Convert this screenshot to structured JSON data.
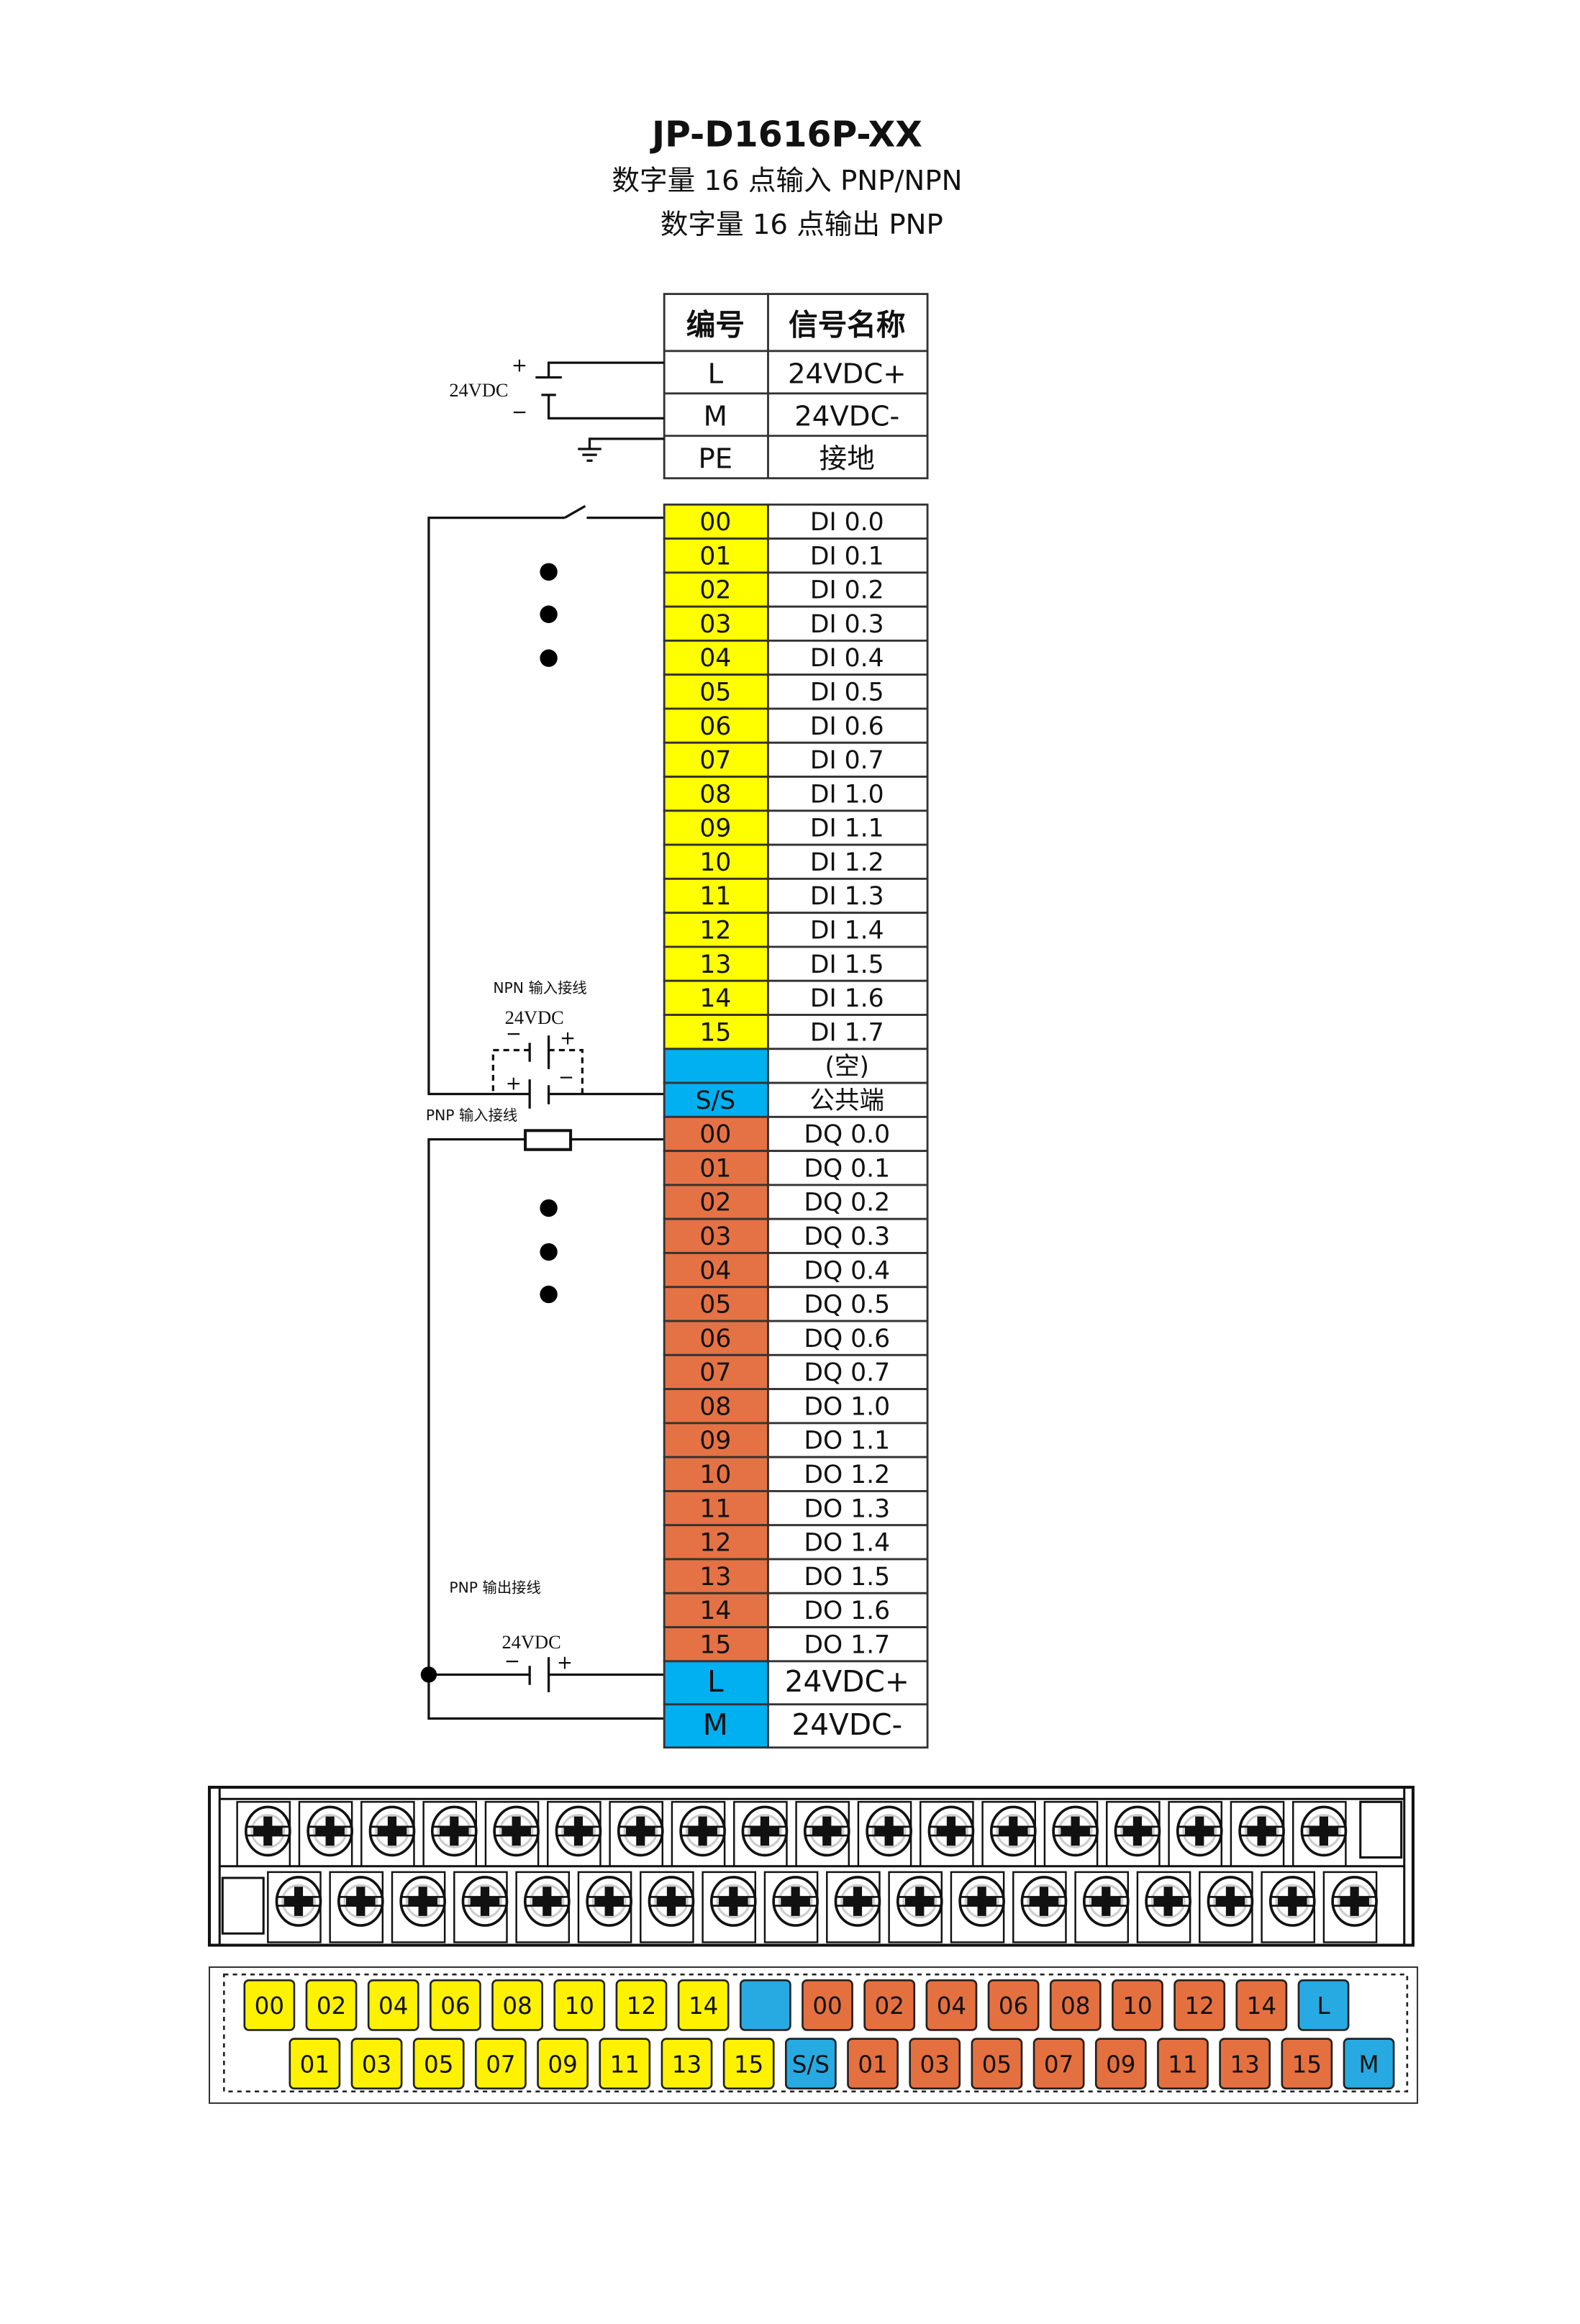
{
  "title": "JP-D1616P-XX",
  "subtitle_lines": [
    "数字量 16 点输入  PNP/NPN",
    "数字量 16 点输出  PNP"
  ],
  "colors": {
    "input": "#ffff00",
    "common": "#00b0f0",
    "output": "#e57245",
    "label_input": "#fff200",
    "label_common": "#27aae1",
    "label_output": "#e5703f"
  },
  "power_table": {
    "headers": [
      "编号",
      "信号名称"
    ],
    "rows": [
      {
        "id": "L",
        "name": "24VDC+"
      },
      {
        "id": "M",
        "name": "24VDC-"
      },
      {
        "id": "PE",
        "name": "接地"
      }
    ]
  },
  "io_table": {
    "rows": [
      {
        "id": "00",
        "name": "DI 0.0",
        "group": "input"
      },
      {
        "id": "01",
        "name": "DI 0.1",
        "group": "input"
      },
      {
        "id": "02",
        "name": "DI 0.2",
        "group": "input"
      },
      {
        "id": "03",
        "name": "DI 0.3",
        "group": "input"
      },
      {
        "id": "04",
        "name": "DI 0.4",
        "group": "input"
      },
      {
        "id": "05",
        "name": "DI 0.5",
        "group": "input"
      },
      {
        "id": "06",
        "name": "DI 0.6",
        "group": "input"
      },
      {
        "id": "07",
        "name": "DI 0.7",
        "group": "input"
      },
      {
        "id": "08",
        "name": "DI 1.0",
        "group": "input"
      },
      {
        "id": "09",
        "name": "DI 1.1",
        "group": "input"
      },
      {
        "id": "10",
        "name": "DI 1.2",
        "group": "input"
      },
      {
        "id": "11",
        "name": "DI 1.3",
        "group": "input"
      },
      {
        "id": "12",
        "name": "DI 1.4",
        "group": "input"
      },
      {
        "id": "13",
        "name": "DI 1.5",
        "group": "input"
      },
      {
        "id": "14",
        "name": "DI 1.6",
        "group": "input"
      },
      {
        "id": "15",
        "name": "DI 1.7",
        "group": "input"
      },
      {
        "id": "",
        "name": "(空)",
        "group": "common"
      },
      {
        "id": "S/S",
        "name": "公共端",
        "group": "common"
      },
      {
        "id": "00",
        "name": "DQ 0.0",
        "group": "output"
      },
      {
        "id": "01",
        "name": "DQ 0.1",
        "group": "output"
      },
      {
        "id": "02",
        "name": "DQ 0.2",
        "group": "output"
      },
      {
        "id": "03",
        "name": "DQ 0.3",
        "group": "output"
      },
      {
        "id": "04",
        "name": "DQ 0.4",
        "group": "output"
      },
      {
        "id": "05",
        "name": "DQ 0.5",
        "group": "output"
      },
      {
        "id": "06",
        "name": "DQ 0.6",
        "group": "output"
      },
      {
        "id": "07",
        "name": "DQ 0.7",
        "group": "output"
      },
      {
        "id": "08",
        "name": "DO 1.0",
        "group": "output"
      },
      {
        "id": "09",
        "name": "DO 1.1",
        "group": "output"
      },
      {
        "id": "10",
        "name": "DO 1.2",
        "group": "output"
      },
      {
        "id": "11",
        "name": "DO 1.3",
        "group": "output"
      },
      {
        "id": "12",
        "name": "DO 1.4",
        "group": "output"
      },
      {
        "id": "13",
        "name": "DO 1.5",
        "group": "output"
      },
      {
        "id": "14",
        "name": "DO 1.6",
        "group": "output"
      },
      {
        "id": "15",
        "name": "DO 1.7",
        "group": "output"
      },
      {
        "id": "L",
        "name": "24VDC+",
        "group": "common",
        "tall": true
      },
      {
        "id": "M",
        "name": "24VDC-",
        "group": "common",
        "tall": true
      }
    ]
  },
  "wiring": {
    "supply_label": "24VDC",
    "plus": "+",
    "minus": "−",
    "npn_input": "NPN 输入接线",
    "pnp_input": "PNP 输入接线",
    "pnp_output": "PNP 输出接线"
  },
  "terminal_labels": {
    "top": [
      {
        "id": "00",
        "group": "input"
      },
      {
        "id": "02",
        "group": "input"
      },
      {
        "id": "04",
        "group": "input"
      },
      {
        "id": "06",
        "group": "input"
      },
      {
        "id": "08",
        "group": "input"
      },
      {
        "id": "10",
        "group": "input"
      },
      {
        "id": "12",
        "group": "input"
      },
      {
        "id": "14",
        "group": "input"
      },
      {
        "id": "",
        "group": "common"
      },
      {
        "id": "00",
        "group": "output"
      },
      {
        "id": "02",
        "group": "output"
      },
      {
        "id": "04",
        "group": "output"
      },
      {
        "id": "06",
        "group": "output"
      },
      {
        "id": "08",
        "group": "output"
      },
      {
        "id": "10",
        "group": "output"
      },
      {
        "id": "12",
        "group": "output"
      },
      {
        "id": "14",
        "group": "output"
      },
      {
        "id": "L",
        "group": "common"
      }
    ],
    "bottom": [
      {
        "id": "01",
        "group": "input"
      },
      {
        "id": "03",
        "group": "input"
      },
      {
        "id": "05",
        "group": "input"
      },
      {
        "id": "07",
        "group": "input"
      },
      {
        "id": "09",
        "group": "input"
      },
      {
        "id": "11",
        "group": "input"
      },
      {
        "id": "13",
        "group": "input"
      },
      {
        "id": "15",
        "group": "input"
      },
      {
        "id": "S/S",
        "group": "common"
      },
      {
        "id": "01",
        "group": "output"
      },
      {
        "id": "03",
        "group": "output"
      },
      {
        "id": "05",
        "group": "output"
      },
      {
        "id": "07",
        "group": "output"
      },
      {
        "id": "09",
        "group": "output"
      },
      {
        "id": "11",
        "group": "output"
      },
      {
        "id": "13",
        "group": "output"
      },
      {
        "id": "15",
        "group": "output"
      },
      {
        "id": "M",
        "group": "common"
      }
    ]
  }
}
